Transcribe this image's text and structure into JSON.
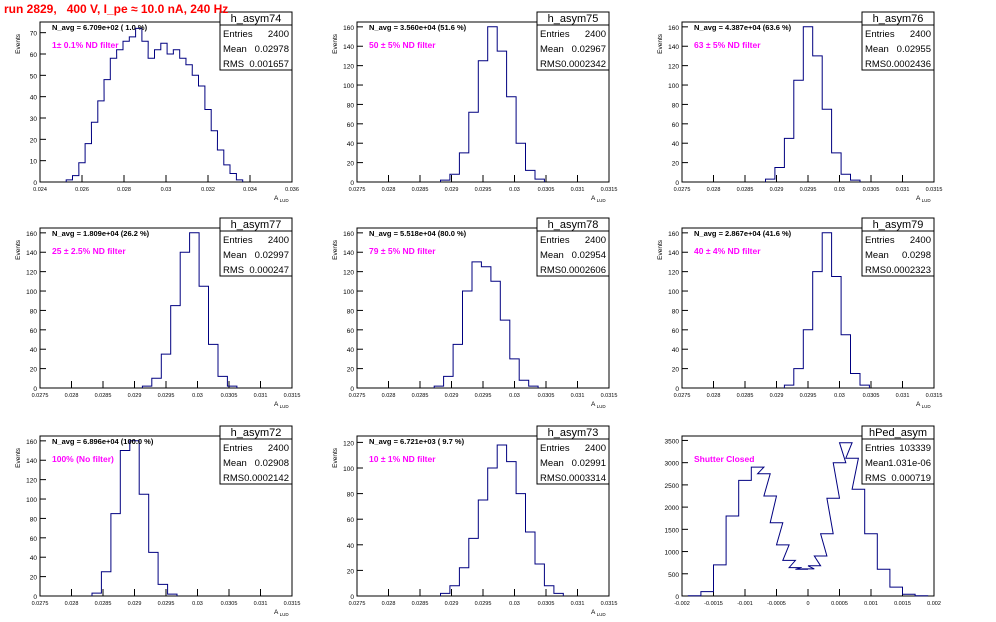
{
  "run_title": "run 2829,   400 V, I_pe ≈ 10.0 nA, 240 Hz",
  "colors": {
    "histogram_line": "#000080",
    "annotation": "#ff00ff",
    "title_text": "#ff0000",
    "axis": "#000000"
  },
  "chart_data": [
    {
      "type": "histogram",
      "hist_name": "h_asym74",
      "stats": [
        [
          "Entries",
          "2400"
        ],
        [
          "Mean",
          "0.02978"
        ],
        [
          "RMS",
          "0.001657"
        ]
      ],
      "navg": "N_avg = 6.709e+02 ( 1.0 %)",
      "filter": "1± 0.1% ND filter",
      "xlabel": "A_LUD",
      "ylabel": "Events",
      "xlim": [
        0.024,
        0.036
      ],
      "ylim": [
        0,
        75
      ],
      "xticks": [
        0.024,
        0.026,
        0.028,
        0.03,
        0.032,
        0.034,
        0.036
      ],
      "xtick_labels": [
        "0.024",
        "0.026",
        "0.028",
        "0.03",
        "0.032",
        "0.034",
        "0.036"
      ],
      "yticks": [
        0,
        10,
        20,
        30,
        40,
        50,
        60,
        70
      ],
      "x": [
        0.0254,
        0.0257,
        0.026,
        0.0263,
        0.0266,
        0.0269,
        0.0272,
        0.0275,
        0.0278,
        0.0281,
        0.0284,
        0.0287,
        0.029,
        0.0293,
        0.0296,
        0.0299,
        0.0302,
        0.0305,
        0.0308,
        0.0311,
        0.0314,
        0.0317,
        0.032,
        0.0323,
        0.0326,
        0.0329,
        0.0332,
        0.0335
      ],
      "y": [
        1,
        3,
        9,
        18,
        28,
        38,
        48,
        58,
        62,
        66,
        68,
        72,
        66,
        58,
        62,
        65,
        60,
        62,
        58,
        55,
        50,
        45,
        34,
        24,
        15,
        8,
        4,
        1
      ]
    },
    {
      "type": "histogram",
      "hist_name": "h_asym75",
      "stats": [
        [
          "Entries",
          "2400"
        ],
        [
          "Mean",
          "0.02967"
        ],
        [
          "RMS",
          "0.0002342"
        ]
      ],
      "navg": "N_avg = 3.560e+04 (51.6 %)",
      "filter": "50 ± 5% ND filter",
      "xlabel": "A_LUD",
      "ylabel": "Events",
      "xlim": [
        0.0275,
        0.0315
      ],
      "ylim": [
        0,
        165
      ],
      "xticks": [
        0.0275,
        0.028,
        0.0285,
        0.029,
        0.0295,
        0.03,
        0.0305,
        0.031,
        0.0315
      ],
      "xtick_labels": [
        "0.0275",
        "0.028",
        "0.0285",
        "0.029",
        "0.0295",
        "0.03",
        "0.0305",
        "0.031",
        "0.0315"
      ],
      "yticks": [
        0,
        20,
        40,
        60,
        80,
        100,
        120,
        140,
        160
      ],
      "x": [
        0.0289,
        0.02905,
        0.0292,
        0.02935,
        0.0295,
        0.02965,
        0.0298,
        0.02995,
        0.0301,
        0.03025,
        0.0304
      ],
      "y": [
        2,
        8,
        30,
        72,
        125,
        160,
        135,
        88,
        40,
        12,
        3
      ]
    },
    {
      "type": "histogram",
      "hist_name": "h_asym76",
      "stats": [
        [
          "Entries",
          "2400"
        ],
        [
          "Mean",
          "0.02955"
        ],
        [
          "RMS",
          "0.0002436"
        ]
      ],
      "navg": "N_avg = 4.387e+04 (63.6 %)",
      "filter": "63 ± 5% ND filter",
      "xlabel": "A_LUD",
      "ylabel": "Events",
      "xlim": [
        0.0275,
        0.0315
      ],
      "ylim": [
        0,
        165
      ],
      "xticks": [
        0.0275,
        0.028,
        0.0285,
        0.029,
        0.0295,
        0.03,
        0.0305,
        0.031,
        0.0315
      ],
      "xtick_labels": [
        "0.0275",
        "0.028",
        "0.0285",
        "0.029",
        "0.0295",
        "0.03",
        "0.0305",
        "0.031",
        "0.0315"
      ],
      "yticks": [
        0,
        20,
        40,
        60,
        80,
        100,
        120,
        140,
        160
      ],
      "x": [
        0.0289,
        0.02905,
        0.0292,
        0.02935,
        0.0295,
        0.02965,
        0.0298,
        0.02995,
        0.0301,
        0.03025
      ],
      "y": [
        3,
        15,
        45,
        105,
        160,
        130,
        75,
        30,
        8,
        2
      ]
    },
    {
      "type": "histogram",
      "hist_name": "h_asym77",
      "stats": [
        [
          "Entries",
          "2400"
        ],
        [
          "Mean",
          "0.02997"
        ],
        [
          "RMS",
          "0.000247"
        ]
      ],
      "navg": "N_avg = 1.809e+04 (26.2 %)",
      "filter": "25 ± 2.5% ND filter",
      "xlabel": "A_LUD",
      "ylabel": "Events",
      "xlim": [
        0.0275,
        0.0315
      ],
      "ylim": [
        0,
        165
      ],
      "xticks": [
        0.0275,
        0.028,
        0.0285,
        0.029,
        0.0295,
        0.03,
        0.0305,
        0.031,
        0.0315
      ],
      "xtick_labels": [
        "0.0275",
        "0.028",
        "0.0285",
        "0.029",
        "0.0295",
        "0.03",
        "0.0305",
        "0.031",
        "0.0315"
      ],
      "yticks": [
        0,
        20,
        40,
        60,
        80,
        100,
        120,
        140,
        160
      ],
      "x": [
        0.0292,
        0.02935,
        0.0295,
        0.02965,
        0.0298,
        0.02995,
        0.0301,
        0.03025,
        0.0304,
        0.03055
      ],
      "y": [
        2,
        10,
        35,
        85,
        140,
        160,
        105,
        45,
        12,
        2
      ]
    },
    {
      "type": "histogram",
      "hist_name": "h_asym78",
      "stats": [
        [
          "Entries",
          "2400"
        ],
        [
          "Mean",
          "0.02954"
        ],
        [
          "RMS",
          "0.0002606"
        ]
      ],
      "navg": "N_avg = 5.518e+04 (80.0 %)",
      "filter": "79 ± 5% ND filter",
      "xlabel": "A_LUD",
      "ylabel": "Events",
      "xlim": [
        0.0275,
        0.0315
      ],
      "ylim": [
        0,
        165
      ],
      "xticks": [
        0.0275,
        0.028,
        0.0285,
        0.029,
        0.0295,
        0.03,
        0.0305,
        0.031,
        0.0315
      ],
      "xtick_labels": [
        "0.0275",
        "0.028",
        "0.0285",
        "0.029",
        "0.0295",
        "0.03",
        "0.0305",
        "0.031",
        "0.0315"
      ],
      "yticks": [
        0,
        20,
        40,
        60,
        80,
        100,
        120,
        140,
        160
      ],
      "x": [
        0.0288,
        0.02895,
        0.0291,
        0.02925,
        0.0294,
        0.02955,
        0.0297,
        0.02985,
        0.03,
        0.03015,
        0.0303
      ],
      "y": [
        2,
        12,
        45,
        100,
        130,
        125,
        110,
        70,
        30,
        8,
        2
      ]
    },
    {
      "type": "histogram",
      "hist_name": "h_asym79",
      "stats": [
        [
          "Entries",
          "2400"
        ],
        [
          "Mean",
          "0.0298"
        ],
        [
          "RMS",
          "0.0002323"
        ]
      ],
      "navg": "N_avg = 2.867e+04 (41.6 %)",
      "filter": "40 ± 4% ND filter",
      "xlabel": "A_LUD",
      "ylabel": "Events",
      "xlim": [
        0.0275,
        0.0315
      ],
      "ylim": [
        0,
        165
      ],
      "xticks": [
        0.0275,
        0.028,
        0.0285,
        0.029,
        0.0295,
        0.03,
        0.0305,
        0.031,
        0.0315
      ],
      "xtick_labels": [
        "0.0275",
        "0.028",
        "0.0285",
        "0.029",
        "0.0295",
        "0.03",
        "0.0305",
        "0.031",
        "0.0315"
      ],
      "yticks": [
        0,
        20,
        40,
        60,
        80,
        100,
        120,
        140,
        160
      ],
      "x": [
        0.0292,
        0.02935,
        0.0295,
        0.02965,
        0.0298,
        0.02995,
        0.0301,
        0.03025,
        0.0304
      ],
      "y": [
        3,
        20,
        60,
        120,
        160,
        115,
        55,
        15,
        3
      ]
    },
    {
      "type": "histogram",
      "hist_name": "h_asym72",
      "stats": [
        [
          "Entries",
          "2400"
        ],
        [
          "Mean",
          "0.02908"
        ],
        [
          "RMS",
          "0.0002142"
        ]
      ],
      "navg": "N_avg = 6.896e+04 (100.0 %)",
      "filter": "100% (No filter)",
      "xlabel": "A_LUD",
      "ylabel": "Events",
      "xlim": [
        0.0275,
        0.0315
      ],
      "ylim": [
        0,
        165
      ],
      "xticks": [
        0.0275,
        0.028,
        0.0285,
        0.029,
        0.0295,
        0.03,
        0.0305,
        0.031,
        0.0315
      ],
      "xtick_labels": [
        "0.0275",
        "0.028",
        "0.0285",
        "0.029",
        "0.0295",
        "0.03",
        "0.0305",
        "0.031",
        "0.0315"
      ],
      "yticks": [
        0,
        20,
        40,
        60,
        80,
        100,
        120,
        140,
        160
      ],
      "x": [
        0.0284,
        0.02855,
        0.0287,
        0.02885,
        0.029,
        0.02915,
        0.0293,
        0.02945,
        0.0296
      ],
      "y": [
        3,
        25,
        85,
        150,
        160,
        105,
        45,
        12,
        2
      ]
    },
    {
      "type": "histogram",
      "hist_name": "h_asym73",
      "stats": [
        [
          "Entries",
          "2400"
        ],
        [
          "Mean",
          "0.02991"
        ],
        [
          "RMS",
          "0.0003314"
        ]
      ],
      "navg": "N_avg = 6.721e+03 ( 9.7 %)",
      "filter": "10 ± 1% ND filter",
      "xlabel": "A_LUD",
      "ylabel": "Events",
      "xlim": [
        0.0275,
        0.0315
      ],
      "ylim": [
        0,
        125
      ],
      "xticks": [
        0.0275,
        0.028,
        0.0285,
        0.029,
        0.0295,
        0.03,
        0.0305,
        0.031,
        0.0315
      ],
      "xtick_labels": [
        "0.0275",
        "0.028",
        "0.0285",
        "0.029",
        "0.0295",
        "0.03",
        "0.0305",
        "0.031",
        "0.0315"
      ],
      "yticks": [
        0,
        20,
        40,
        60,
        80,
        100,
        120
      ],
      "x": [
        0.0289,
        0.02905,
        0.0292,
        0.02935,
        0.0295,
        0.02965,
        0.0298,
        0.02995,
        0.0301,
        0.03025,
        0.0304,
        0.03055,
        0.0307
      ],
      "y": [
        2,
        8,
        22,
        45,
        75,
        100,
        118,
        105,
        80,
        50,
        25,
        8,
        2
      ]
    },
    {
      "type": "histogram",
      "hist_name": "hPed_asym",
      "stats": [
        [
          "Entries",
          "103339"
        ],
        [
          "Mean",
          "1.031e-06"
        ],
        [
          "RMS",
          "0.000719"
        ]
      ],
      "navg": "",
      "filter": "Shutter Closed",
      "xlabel": "",
      "ylabel": "",
      "xlim": [
        -0.002,
        0.002
      ],
      "ylim": [
        0,
        3600
      ],
      "xticks": [
        -0.002,
        -0.0015,
        -0.001,
        -0.0005,
        0,
        0.0005,
        0.001,
        0.0015,
        0.002
      ],
      "xtick_labels": [
        "-0.002",
        "-0.0015",
        "-0.001",
        "-0.0005",
        "0",
        "0.0005",
        "0.001",
        "0.0015",
        "0.002"
      ],
      "yticks": [
        0,
        500,
        1000,
        1500,
        2000,
        2500,
        3000,
        3500
      ],
      "x": [
        -0.0018,
        -0.0016,
        -0.0014,
        -0.0012,
        -0.001,
        -0.0008,
        -0.0007,
        -0.0006,
        -0.0005,
        -0.0004,
        -0.0003,
        -0.0002,
        -0.0001,
        0,
        0.0001,
        0.0002,
        0.0003,
        0.0004,
        0.0005,
        0.0006,
        0.0007,
        0.0008,
        0.001,
        0.0012,
        0.0014,
        0.0016,
        0.0018
      ],
      "y": [
        5,
        100,
        700,
        1800,
        2600,
        2900,
        2750,
        2250,
        1650,
        1150,
        800,
        640,
        600,
        610,
        680,
        900,
        1400,
        2200,
        3000,
        3450,
        3100,
        2400,
        1400,
        600,
        200,
        40,
        5
      ]
    }
  ]
}
